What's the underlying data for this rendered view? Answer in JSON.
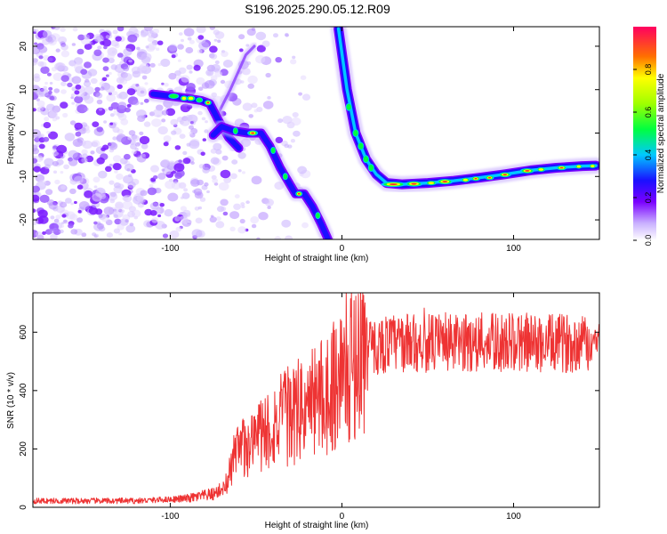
{
  "title": "S196.2025.290.05.12.R09",
  "chart_data": [
    {
      "type": "heatmap",
      "xlabel": "Height of straight line (km)",
      "ylabel": "Frequency (Hz)",
      "xlim": [
        -180,
        150
      ],
      "ylim": [
        -24.5,
        24.5
      ],
      "xticks": [
        -100,
        0,
        100
      ],
      "xtick_labels": [
        "-100",
        "0",
        "100"
      ],
      "yticks": [
        -20,
        -10,
        0,
        10,
        20
      ],
      "ytick_labels": [
        "-20",
        "-10",
        "0",
        "10",
        "20"
      ],
      "colorbar": {
        "label": "Normalized spectral amplitude",
        "range": [
          0,
          1
        ],
        "ticks": [
          0,
          0.2,
          0.4,
          0.6,
          0.8
        ],
        "tick_labels": [
          "0.0",
          "0.2",
          "0.4",
          "0.6",
          "0.8"
        ]
      },
      "traces": [
        {
          "name": "descending-arc",
          "points": [
            [
              -2,
              24
            ],
            [
              3,
              10
            ],
            [
              8,
              0
            ],
            [
              14,
              -6
            ],
            [
              20,
              -9.5
            ],
            [
              26,
              -11.5
            ],
            [
              35,
              -11.8
            ],
            [
              50,
              -11.5
            ],
            [
              65,
              -11
            ],
            [
              80,
              -10.3
            ],
            [
              95,
              -9.5
            ],
            [
              110,
              -8.6
            ],
            [
              125,
              -8
            ],
            [
              140,
              -7.6
            ],
            [
              148,
              -7.5
            ]
          ]
        },
        {
          "name": "lower-branch",
          "points": [
            [
              -75,
              -0.5
            ],
            [
              -70,
              1.5
            ],
            [
              -63,
              0.5
            ],
            [
              -55,
              0
            ],
            [
              -47,
              0
            ],
            [
              -42,
              -3
            ],
            [
              -36,
              -8
            ],
            [
              -30,
              -12
            ],
            [
              -27,
              -14
            ],
            [
              -22,
              -14
            ],
            [
              -17,
              -17
            ],
            [
              -12,
              -21
            ],
            [
              -8,
              -24.5
            ]
          ]
        },
        {
          "name": "upper-branch",
          "points": [
            [
              -110,
              9
            ],
            [
              -100,
              8.5
            ],
            [
              -90,
              8
            ],
            [
              -82,
              7.5
            ],
            [
              -77,
              6.8
            ],
            [
              -72,
              3
            ],
            [
              -66,
              -1
            ],
            [
              -60,
              -3.5
            ]
          ]
        },
        {
          "name": "faint-rising-line",
          "points": [
            [
              -74,
              3
            ],
            [
              -65,
              10
            ],
            [
              -56,
              18
            ],
            [
              -51,
              20
            ]
          ]
        }
      ]
    },
    {
      "type": "line",
      "xlabel": "Height of straight line (km)",
      "ylabel": "SNR (10 * v/v)",
      "xlim": [
        -180,
        150
      ],
      "ylim": [
        0,
        735
      ],
      "xticks": [
        -100,
        0,
        100
      ],
      "xtick_labels": [
        "-100",
        "0",
        "100"
      ],
      "yticks": [
        0,
        200,
        400,
        600
      ],
      "ytick_labels": [
        "0",
        "200",
        "400",
        "600"
      ],
      "series": [
        {
          "name": "SNR",
          "color": "#ee3333",
          "envelope": [
            [
              -180,
              22
            ],
            [
              -120,
              22
            ],
            [
              -90,
              30
            ],
            [
              -75,
              45
            ],
            [
              -68,
              70
            ],
            [
              -62,
              170
            ],
            [
              -55,
              220
            ],
            [
              -45,
              260
            ],
            [
              -35,
              300
            ],
            [
              -25,
              330
            ],
            [
              -15,
              370
            ],
            [
              -8,
              400
            ],
            [
              0,
              460
            ],
            [
              8,
              510
            ],
            [
              15,
              540
            ],
            [
              25,
              560
            ],
            [
              40,
              565
            ],
            [
              60,
              560
            ],
            [
              80,
              565
            ],
            [
              100,
              565
            ],
            [
              120,
              560
            ],
            [
              140,
              565
            ],
            [
              150,
              565
            ]
          ]
        }
      ]
    }
  ]
}
